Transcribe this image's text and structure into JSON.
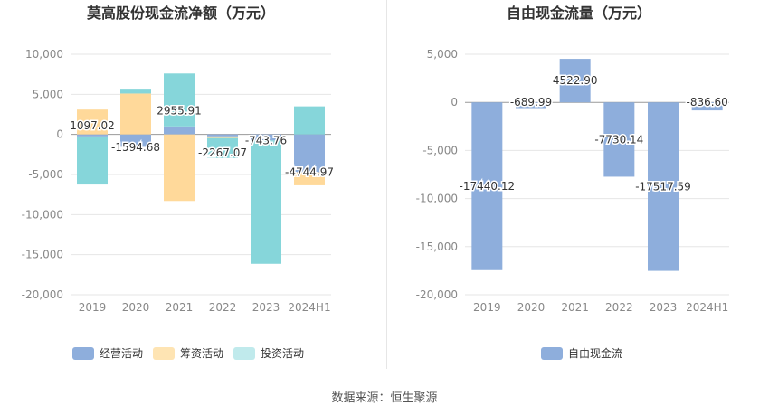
{
  "source_label": "数据来源：恒生聚源",
  "colors": {
    "operating": "#8eaedc",
    "financing": "#ffd99a",
    "investing": "#86d6da",
    "financing_legend": "#fee4b3",
    "investing_legend": "#c0eaec",
    "grid": "#e6e6e6",
    "axis_text": "#888888",
    "label_text": "#333333"
  },
  "chart_data": [
    {
      "type": "bar",
      "stacked": true,
      "title": "莫高股份现金流净额（万元）",
      "categories": [
        "2019",
        "2020",
        "2021",
        "2022",
        "2023",
        "2024H1"
      ],
      "ylim": [
        -20000,
        10000
      ],
      "yticks": [
        10000,
        5000,
        0,
        -5000,
        -10000,
        -15000,
        -20000
      ],
      "ytick_labels": [
        "10,000",
        "5,000",
        "0",
        "-5,000",
        "-10,000",
        "-15,000",
        "-20,000"
      ],
      "grid": true,
      "legend_position": "bottom",
      "series": [
        {
          "name": "经营活动",
          "key": "operating",
          "values": [
            -250,
            -1550,
            1000,
            -250,
            -740,
            -4745
          ]
        },
        {
          "name": "筹资活动",
          "key": "financing",
          "values": [
            3100,
            5100,
            -8300,
            -200,
            0,
            -1600
          ]
        },
        {
          "name": "投资活动",
          "key": "investing",
          "values": [
            -6000,
            600,
            6600,
            -2500,
            -15400,
            3500
          ]
        }
      ],
      "net_labels": [
        "1097.02",
        "-1594.68",
        "2955.91",
        "-2267.07",
        "-743.76",
        "-4744.97"
      ],
      "net_values": [
        1097.02,
        -1594.68,
        2955.91,
        -2267.07,
        -743.76,
        -4744.97
      ]
    },
    {
      "type": "bar",
      "title": "自由现金流量（万元）",
      "categories": [
        "2019",
        "2020",
        "2021",
        "2022",
        "2023",
        "2024H1"
      ],
      "ylim": [
        -20000,
        5000
      ],
      "yticks": [
        5000,
        0,
        -5000,
        -10000,
        -15000,
        -20000
      ],
      "ytick_labels": [
        "5,000",
        "0",
        "-5,000",
        "-10,000",
        "-15,000",
        "-20,000"
      ],
      "grid": true,
      "legend_position": "bottom",
      "series": [
        {
          "name": "自由现金流",
          "key": "operating",
          "values": [
            -17440.12,
            -689.99,
            4522.9,
            -7730.14,
            -17517.59,
            -836.6
          ]
        }
      ],
      "data_labels": [
        "-17440.12",
        "-689.99",
        "4522.90",
        "-7730.14",
        "-17517.59",
        "-836.60"
      ]
    }
  ]
}
